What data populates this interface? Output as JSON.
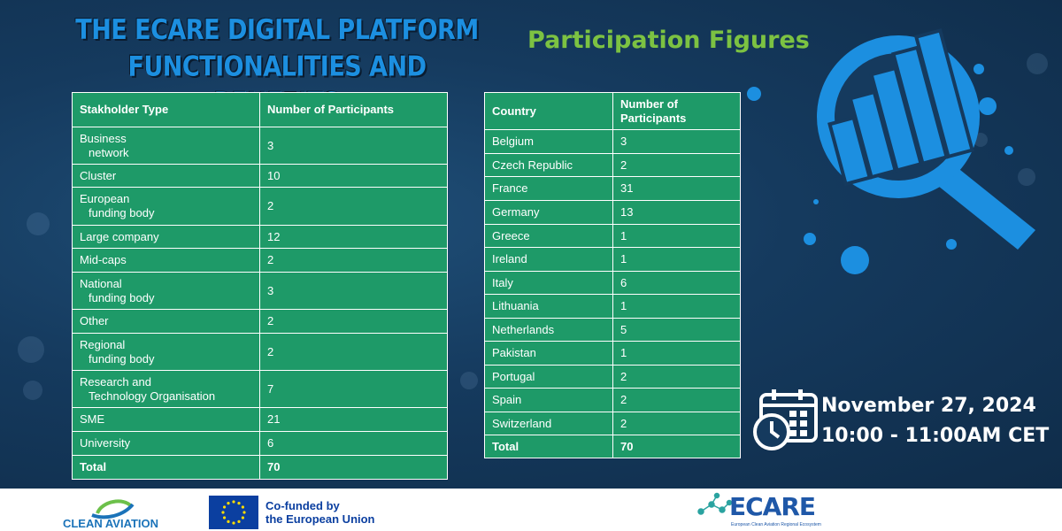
{
  "title": {
    "line1": "THE ECARE DIGITAL PLATFORM",
    "line2": "FUNCTIONALITIES AND BENEFITS"
  },
  "subtitle": "Participation Figures",
  "stakeholder_table": {
    "headers": [
      "Stakholder Type",
      "Number of Participants"
    ],
    "rows": [
      {
        "label_line1": "Business",
        "label_line2": "network",
        "value": "3"
      },
      {
        "label_line1": "Cluster",
        "label_line2": "",
        "value": "10"
      },
      {
        "label_line1": "European",
        "label_line2": "funding body",
        "value": "2"
      },
      {
        "label_line1": "Large company",
        "label_line2": "",
        "value": "12"
      },
      {
        "label_line1": "Mid-caps",
        "label_line2": "",
        "value": "2"
      },
      {
        "label_line1": "National",
        "label_line2": "funding body",
        "value": "3"
      },
      {
        "label_line1": "Other",
        "label_line2": "",
        "value": "2"
      },
      {
        "label_line1": "Regional",
        "label_line2": "funding body",
        "value": "2"
      },
      {
        "label_line1": "Research and",
        "label_line2": "Technology Organisation",
        "value": "7"
      },
      {
        "label_line1": "SME",
        "label_line2": "",
        "value": "21"
      },
      {
        "label_line1": "University",
        "label_line2": "",
        "value": "6"
      }
    ],
    "total_label": "Total",
    "total_value": "70"
  },
  "country_table": {
    "header_country": "Country",
    "header_participants_line1": "Number of",
    "header_participants_line2": "Participants",
    "rows": [
      {
        "country": "Belgium",
        "value": "3"
      },
      {
        "country": "Czech Republic",
        "value": "2"
      },
      {
        "country": "France",
        "value": "31"
      },
      {
        "country": "Germany",
        "value": "13"
      },
      {
        "country": "Greece",
        "value": "1"
      },
      {
        "country": "Ireland",
        "value": "1"
      },
      {
        "country": "Italy",
        "value": "6"
      },
      {
        "country": "Lithuania",
        "value": "1"
      },
      {
        "country": "Netherlands",
        "value": "5"
      },
      {
        "country": "Pakistan",
        "value": "1"
      },
      {
        "country": "Portugal",
        "value": "2"
      },
      {
        "country": "Spain",
        "value": "2"
      },
      {
        "country": "Switzerland",
        "value": "2"
      }
    ],
    "total_label": "Total",
    "total_value": "70"
  },
  "event": {
    "date": "November 27, 2024",
    "time": "10:00 - 11:00AM CET"
  },
  "footer": {
    "clean_aviation": "CLEAN AVIATION",
    "eu_line1": "Co-funded by",
    "eu_line2": "the European Union",
    "ecare": "ECARE",
    "ecare_tagline": "European Clean Aviation Regional Ecosystem"
  },
  "icons": [
    "magnifier-chart-icon",
    "calendar-clock-icon",
    "eu-flag-icon",
    "clean-aviation-swirl-icon"
  ],
  "colors": {
    "background": "#153a5e",
    "title_blue": "#1c8fe0",
    "subtitle_green": "#7cc242",
    "table_green": "#1e9a68",
    "icon_blue": "#1c8fe0",
    "eu_blue": "#0b3fa0"
  }
}
